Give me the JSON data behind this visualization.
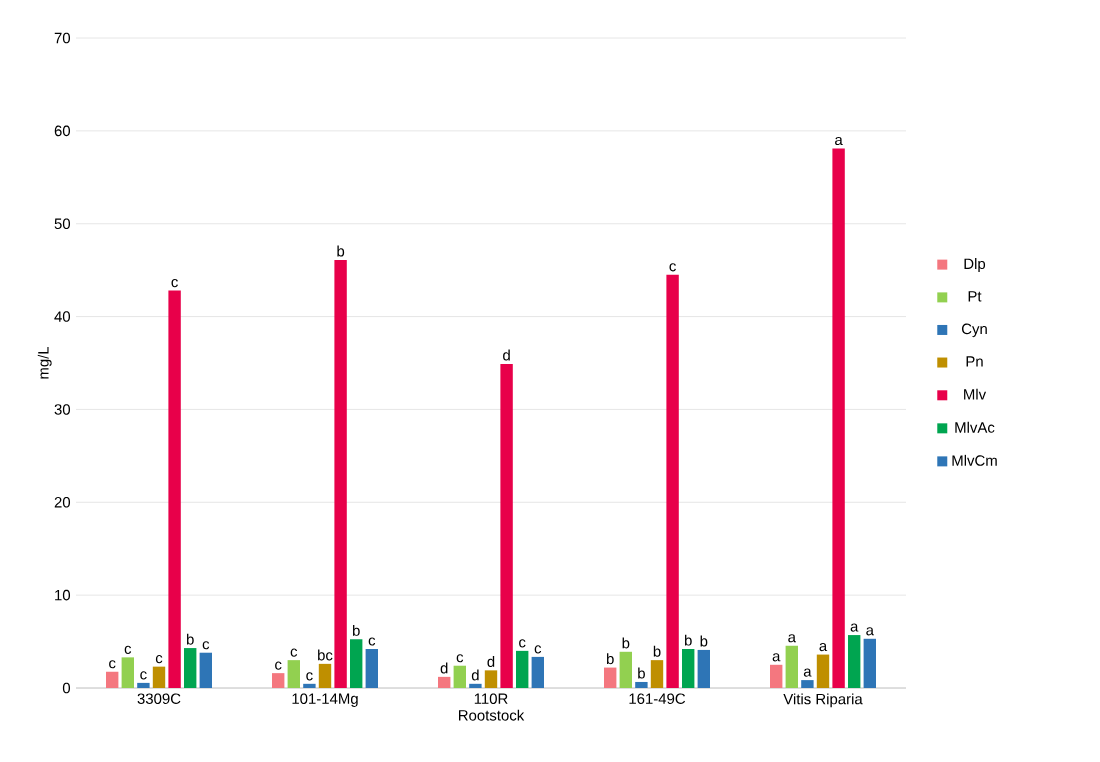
{
  "chart_data": {
    "type": "bar",
    "xlabel": "Rootstock",
    "ylabel": "mg/L",
    "categories": [
      "3309C",
      "101-14Mg",
      "110R",
      "161-49C",
      "Vitis Riparia"
    ],
    "ylim": [
      0,
      70
    ],
    "yticks": [
      0,
      10,
      20,
      30,
      40,
      50,
      60,
      70
    ],
    "grid": "y",
    "legend": "right",
    "series": [
      {
        "name": "Dlp",
        "color": "#f4777f",
        "values": [
          1.75,
          1.6,
          1.2,
          2.2,
          2.5
        ],
        "value_labels": [
          "c",
          "c",
          "d",
          "b",
          "a"
        ]
      },
      {
        "name": "Pt",
        "color": "#92d050",
        "values": [
          3.3,
          3.0,
          2.4,
          3.9,
          4.55
        ],
        "value_labels": [
          "c",
          "c",
          "c",
          "b",
          "a"
        ]
      },
      {
        "name": "Cyn",
        "color": "#2e75b6",
        "values": [
          0.55,
          0.45,
          0.45,
          0.65,
          0.85
        ],
        "value_labels": [
          "c",
          "c",
          "d",
          "b",
          "a"
        ]
      },
      {
        "name": "Pn",
        "color": "#bf8f00",
        "values": [
          2.3,
          2.6,
          1.9,
          3.0,
          3.6
        ],
        "value_labels": [
          "c",
          "bc",
          "d",
          "b",
          "a"
        ]
      },
      {
        "name": "Mlv",
        "color": "#e8004a",
        "values": [
          42.8,
          46.1,
          34.9,
          44.5,
          58.1
        ],
        "value_labels": [
          "c",
          "b",
          "d",
          "c",
          "a"
        ]
      },
      {
        "name": "MlvAc",
        "color": "#00a550",
        "values": [
          4.3,
          5.25,
          4.0,
          4.2,
          5.7
        ],
        "value_labels": [
          "b",
          "b",
          "c",
          "b",
          "a"
        ]
      },
      {
        "name": "MlvCm",
        "color": "#2e75b6",
        "values": [
          3.8,
          4.2,
          3.35,
          4.1,
          5.3
        ],
        "value_labels": [
          "c",
          "c",
          "c",
          "b",
          "a"
        ]
      }
    ]
  }
}
